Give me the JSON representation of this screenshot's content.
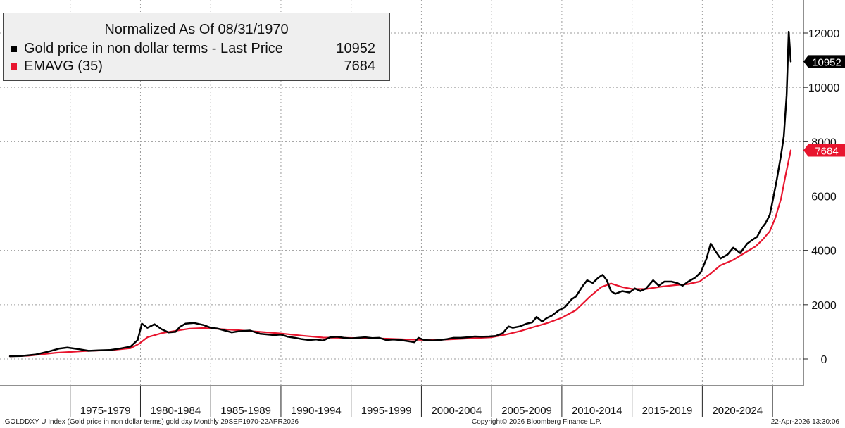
{
  "legend": {
    "title": "Normalized As Of 08/31/1970",
    "series": [
      {
        "label": "Gold price in non dollar terms - Last Price",
        "value": "10952",
        "color": "#000000"
      },
      {
        "label": "EMAVG (35)",
        "value": "7684",
        "color": "#e8152e"
      }
    ]
  },
  "footer": {
    "left": ".GOLDDXY U Index (Gold price in non dollar terms) gold dxy Monthly 29SEP1970-22APR2026",
    "center": "Copyright© 2026 Bloomberg Finance L.P.",
    "right": "22-Apr-2026 13:30:06"
  },
  "chart_data": {
    "type": "line",
    "x_tick_labels": [
      "1975-1979",
      "1980-1984",
      "1985-1989",
      "1990-1994",
      "1995-1999",
      "2000-2004",
      "2005-2009",
      "2010-2014",
      "2015-2019",
      "2020-2024"
    ],
    "y_ticks": [
      0,
      2000,
      4000,
      6000,
      8000,
      10000,
      12000
    ],
    "ylim": [
      -900,
      12900
    ],
    "xlim": [
      1970.0,
      2027.2
    ],
    "grid": true,
    "last_value_tags": [
      "10952",
      "7684"
    ],
    "series": [
      {
        "name": "Gold price in non dollar terms - Last Price",
        "color": "#000000",
        "points": [
          [
            1970.7,
            100
          ],
          [
            1971.5,
            110
          ],
          [
            1972.5,
            160
          ],
          [
            1973.5,
            280
          ],
          [
            1974.2,
            380
          ],
          [
            1974.8,
            420
          ],
          [
            1975.5,
            370
          ],
          [
            1976.3,
            300
          ],
          [
            1977.0,
            320
          ],
          [
            1977.8,
            330
          ],
          [
            1978.5,
            380
          ],
          [
            1979.3,
            460
          ],
          [
            1979.8,
            700
          ],
          [
            1980.1,
            1300
          ],
          [
            1980.5,
            1150
          ],
          [
            1981.0,
            1280
          ],
          [
            1981.5,
            1100
          ],
          [
            1982.0,
            980
          ],
          [
            1982.5,
            1000
          ],
          [
            1982.8,
            1180
          ],
          [
            1983.2,
            1300
          ],
          [
            1983.8,
            1330
          ],
          [
            1984.5,
            1250
          ],
          [
            1985.0,
            1150
          ],
          [
            1985.5,
            1120
          ],
          [
            1986.0,
            1050
          ],
          [
            1986.5,
            980
          ],
          [
            1987.0,
            1020
          ],
          [
            1987.8,
            1050
          ],
          [
            1988.5,
            930
          ],
          [
            1989.5,
            880
          ],
          [
            1990.0,
            900
          ],
          [
            1990.5,
            820
          ],
          [
            1991.0,
            780
          ],
          [
            1991.5,
            730
          ],
          [
            1992.0,
            700
          ],
          [
            1992.5,
            720
          ],
          [
            1993.0,
            680
          ],
          [
            1993.5,
            800
          ],
          [
            1994.0,
            820
          ],
          [
            1994.5,
            780
          ],
          [
            1995.0,
            760
          ],
          [
            1995.5,
            780
          ],
          [
            1996.0,
            800
          ],
          [
            1996.5,
            770
          ],
          [
            1997.0,
            780
          ],
          [
            1997.5,
            700
          ],
          [
            1998.0,
            720
          ],
          [
            1998.5,
            700
          ],
          [
            1999.0,
            660
          ],
          [
            1999.5,
            620
          ],
          [
            1999.8,
            780
          ],
          [
            2000.2,
            700
          ],
          [
            2000.8,
            680
          ],
          [
            2001.3,
            700
          ],
          [
            2001.8,
            730
          ],
          [
            2002.3,
            780
          ],
          [
            2002.8,
            780
          ],
          [
            2003.3,
            800
          ],
          [
            2003.8,
            830
          ],
          [
            2004.3,
            820
          ],
          [
            2004.8,
            830
          ],
          [
            2005.3,
            850
          ],
          [
            2005.8,
            950
          ],
          [
            2006.2,
            1200
          ],
          [
            2006.5,
            1150
          ],
          [
            2007.0,
            1200
          ],
          [
            2007.5,
            1300
          ],
          [
            2007.9,
            1350
          ],
          [
            2008.2,
            1550
          ],
          [
            2008.6,
            1380
          ],
          [
            2008.9,
            1500
          ],
          [
            2009.3,
            1600
          ],
          [
            2009.8,
            1800
          ],
          [
            2010.2,
            1900
          ],
          [
            2010.7,
            2200
          ],
          [
            2011.0,
            2300
          ],
          [
            2011.5,
            2700
          ],
          [
            2011.8,
            2900
          ],
          [
            2012.2,
            2800
          ],
          [
            2012.6,
            3000
          ],
          [
            2012.9,
            3100
          ],
          [
            2013.2,
            2900
          ],
          [
            2013.5,
            2500
          ],
          [
            2013.8,
            2400
          ],
          [
            2014.3,
            2500
          ],
          [
            2014.8,
            2450
          ],
          [
            2015.2,
            2600
          ],
          [
            2015.6,
            2500
          ],
          [
            2016.0,
            2600
          ],
          [
            2016.5,
            2900
          ],
          [
            2016.9,
            2700
          ],
          [
            2017.3,
            2850
          ],
          [
            2017.8,
            2850
          ],
          [
            2018.2,
            2800
          ],
          [
            2018.6,
            2700
          ],
          [
            2019.0,
            2850
          ],
          [
            2019.5,
            3000
          ],
          [
            2019.9,
            3200
          ],
          [
            2020.3,
            3700
          ],
          [
            2020.6,
            4250
          ],
          [
            2020.9,
            4000
          ],
          [
            2021.3,
            3700
          ],
          [
            2021.8,
            3850
          ],
          [
            2022.2,
            4100
          ],
          [
            2022.7,
            3900
          ],
          [
            2023.2,
            4250
          ],
          [
            2023.6,
            4400
          ],
          [
            2023.9,
            4500
          ],
          [
            2024.2,
            4800
          ],
          [
            2024.5,
            5000
          ],
          [
            2024.8,
            5300
          ],
          [
            2025.0,
            5800
          ],
          [
            2025.3,
            6600
          ],
          [
            2025.6,
            7500
          ],
          [
            2025.8,
            8200
          ],
          [
            2026.0,
            9700
          ],
          [
            2026.15,
            12050
          ],
          [
            2026.3,
            10952
          ]
        ]
      },
      {
        "name": "EMAVG (35)",
        "color": "#e8152e",
        "points": [
          [
            1970.7,
            100
          ],
          [
            1972.0,
            120
          ],
          [
            1974.0,
            230
          ],
          [
            1976.0,
            290
          ],
          [
            1978.0,
            330
          ],
          [
            1979.3,
            400
          ],
          [
            1979.9,
            560
          ],
          [
            1980.5,
            800
          ],
          [
            1981.5,
            950
          ],
          [
            1982.5,
            1040
          ],
          [
            1983.5,
            1120
          ],
          [
            1984.5,
            1140
          ],
          [
            1985.5,
            1110
          ],
          [
            1987.0,
            1060
          ],
          [
            1988.5,
            1000
          ],
          [
            1990.0,
            940
          ],
          [
            1991.5,
            860
          ],
          [
            1993.0,
            790
          ],
          [
            1994.5,
            780
          ],
          [
            1996.0,
            770
          ],
          [
            1997.5,
            750
          ],
          [
            1999.0,
            720
          ],
          [
            2000.5,
            700
          ],
          [
            2002.0,
            720
          ],
          [
            2003.5,
            760
          ],
          [
            2005.0,
            800
          ],
          [
            2006.0,
            900
          ],
          [
            2007.0,
            1020
          ],
          [
            2008.0,
            1180
          ],
          [
            2009.0,
            1330
          ],
          [
            2010.0,
            1520
          ],
          [
            2011.0,
            1800
          ],
          [
            2012.0,
            2300
          ],
          [
            2012.8,
            2650
          ],
          [
            2013.5,
            2780
          ],
          [
            2014.3,
            2650
          ],
          [
            2015.0,
            2580
          ],
          [
            2016.0,
            2580
          ],
          [
            2017.0,
            2660
          ],
          [
            2018.0,
            2720
          ],
          [
            2019.0,
            2760
          ],
          [
            2019.8,
            2850
          ],
          [
            2020.6,
            3150
          ],
          [
            2021.3,
            3450
          ],
          [
            2022.2,
            3650
          ],
          [
            2023.0,
            3900
          ],
          [
            2023.8,
            4150
          ],
          [
            2024.3,
            4400
          ],
          [
            2024.8,
            4700
          ],
          [
            2025.2,
            5200
          ],
          [
            2025.6,
            5900
          ],
          [
            2025.9,
            6700
          ],
          [
            2026.3,
            7684
          ]
        ]
      }
    ]
  }
}
